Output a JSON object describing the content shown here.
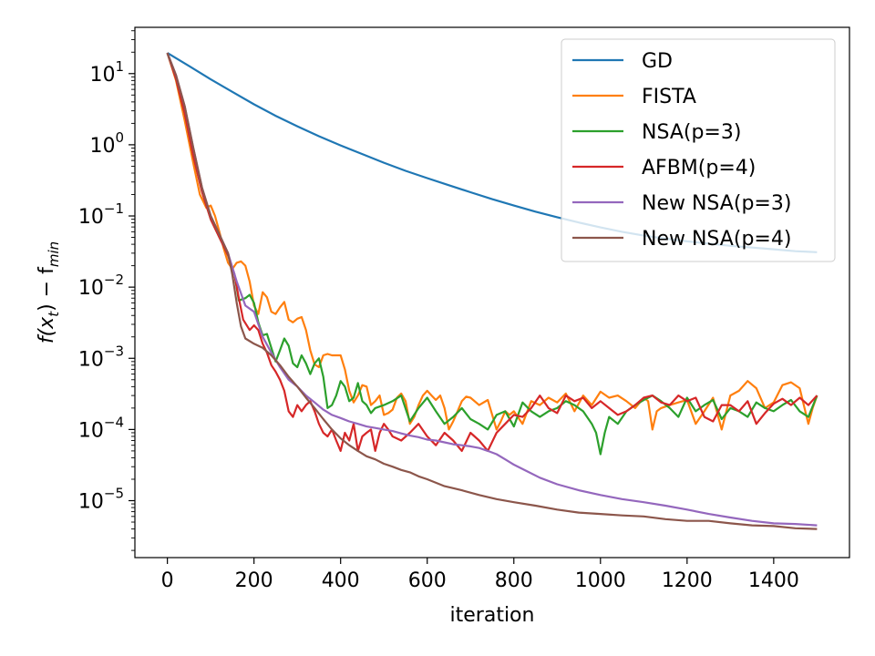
{
  "chart_data": {
    "type": "line",
    "title": "",
    "xlabel": "iteration",
    "ylabel_main": "f(x",
    "ylabel_sub_t": "t",
    "ylabel_mid": ") − f",
    "ylabel_sub_min": "min",
    "xlim": [
      -75,
      1575
    ],
    "ylim_log10": [
      -5.8,
      1.65
    ],
    "yscale": "log",
    "grid": false,
    "legend_position": "top-right",
    "x_ticks": [
      0,
      200,
      400,
      600,
      800,
      1000,
      1200,
      1400
    ],
    "x_tick_labels": [
      "0",
      "200",
      "400",
      "600",
      "800",
      "1000",
      "1200",
      "1400"
    ],
    "y_ticks_log10": [
      1,
      0,
      -1,
      -2,
      -3,
      -4,
      -5
    ],
    "y_tick_base": "10",
    "y_tick_exponents": [
      "1",
      "0",
      "−1",
      "−2",
      "−3",
      "−4",
      "−5"
    ],
    "series": [
      {
        "name": "GD",
        "color": "#1f77b4",
        "x": [
          0,
          20,
          50,
          100,
          150,
          200,
          250,
          300,
          350,
          400,
          450,
          500,
          550,
          600,
          650,
          700,
          750,
          800,
          850,
          900,
          950,
          1000,
          1050,
          1100,
          1150,
          1200,
          1250,
          1300,
          1350,
          1400,
          1450,
          1500
        ],
        "y": [
          19.5,
          16.5,
          12.8,
          8.3,
          5.55,
          3.7,
          2.55,
          1.82,
          1.32,
          0.98,
          0.74,
          0.56,
          0.43,
          0.34,
          0.27,
          0.215,
          0.172,
          0.14,
          0.115,
          0.096,
          0.081,
          0.069,
          0.06,
          0.053,
          0.048,
          0.044,
          0.041,
          0.038,
          0.036,
          0.034,
          0.032,
          0.031
        ]
      },
      {
        "name": "FISTA",
        "color": "#ff7f0e",
        "x": [
          0,
          20,
          40,
          60,
          75,
          90,
          100,
          110,
          120,
          130,
          140,
          150,
          160,
          170,
          180,
          190,
          200,
          210,
          220,
          230,
          240,
          250,
          260,
          270,
          280,
          290,
          300,
          310,
          320,
          330,
          340,
          350,
          360,
          370,
          380,
          390,
          400,
          410,
          420,
          430,
          440,
          450,
          460,
          470,
          480,
          490,
          500,
          510,
          520,
          530,
          540,
          550,
          560,
          570,
          580,
          590,
          600,
          610,
          620,
          630,
          640,
          650,
          660,
          670,
          680,
          690,
          700,
          720,
          740,
          760,
          770,
          780,
          790,
          800,
          820,
          840,
          860,
          880,
          900,
          920,
          940,
          960,
          980,
          1000,
          1020,
          1040,
          1060,
          1080,
          1100,
          1110,
          1120,
          1130,
          1140,
          1160,
          1180,
          1200,
          1220,
          1240,
          1260,
          1280,
          1300,
          1320,
          1340,
          1360,
          1380,
          1400,
          1420,
          1440,
          1460,
          1480,
          1490,
          1500
        ],
        "y": [
          19.5,
          8.0,
          2.2,
          0.55,
          0.2,
          0.13,
          0.14,
          0.1,
          0.06,
          0.035,
          0.022,
          0.018,
          0.022,
          0.023,
          0.02,
          0.012,
          0.0055,
          0.0042,
          0.0085,
          0.0072,
          0.0045,
          0.0042,
          0.0052,
          0.0062,
          0.0035,
          0.0032,
          0.0036,
          0.0038,
          0.0025,
          0.0013,
          0.00082,
          0.00075,
          0.0011,
          0.00115,
          0.0011,
          0.0011,
          0.0011,
          0.0007,
          0.00035,
          0.00024,
          0.0003,
          0.00042,
          0.0004,
          0.00022,
          0.00025,
          0.0003,
          0.00016,
          0.00017,
          0.00019,
          0.00028,
          0.00032,
          0.00025,
          0.00012,
          0.00015,
          0.00022,
          0.0003,
          0.00035,
          0.0003,
          0.00026,
          0.0003,
          0.0002,
          0.0001,
          0.00013,
          0.00018,
          0.00025,
          0.00029,
          0.00028,
          0.00022,
          0.00026,
          0.0001,
          0.00013,
          0.00018,
          0.00016,
          0.00018,
          0.00012,
          0.00025,
          0.00022,
          0.00028,
          0.00024,
          0.00032,
          0.00018,
          0.0003,
          0.00022,
          0.00034,
          0.00028,
          0.0003,
          0.00025,
          0.0002,
          0.00028,
          0.00025,
          0.0001,
          0.00018,
          0.0002,
          0.00022,
          0.00024,
          0.00026,
          0.00012,
          0.00018,
          0.00028,
          0.0001,
          0.0003,
          0.00035,
          0.00048,
          0.00038,
          0.0002,
          0.00024,
          0.00042,
          0.00046,
          0.00038,
          0.00012,
          0.0002,
          0.0003
        ]
      },
      {
        "name": "NSA(p=3)",
        "color": "#2ca02c",
        "x": [
          0,
          20,
          40,
          60,
          80,
          100,
          120,
          140,
          155,
          165,
          180,
          190,
          200,
          210,
          220,
          230,
          240,
          250,
          260,
          270,
          280,
          290,
          300,
          310,
          320,
          330,
          340,
          350,
          360,
          370,
          380,
          390,
          400,
          410,
          420,
          430,
          440,
          450,
          460,
          470,
          480,
          500,
          520,
          540,
          560,
          580,
          600,
          620,
          640,
          660,
          680,
          700,
          720,
          740,
          760,
          780,
          800,
          820,
          840,
          860,
          880,
          900,
          920,
          940,
          960,
          980,
          990,
          1000,
          1010,
          1020,
          1040,
          1060,
          1080,
          1100,
          1120,
          1140,
          1160,
          1180,
          1200,
          1220,
          1240,
          1260,
          1280,
          1300,
          1320,
          1340,
          1360,
          1380,
          1400,
          1420,
          1440,
          1460,
          1480,
          1500
        ],
        "y": [
          19.5,
          8.5,
          2.8,
          0.7,
          0.22,
          0.09,
          0.05,
          0.028,
          0.015,
          0.0065,
          0.007,
          0.0078,
          0.006,
          0.0032,
          0.0021,
          0.0022,
          0.0014,
          0.0009,
          0.0013,
          0.0019,
          0.0015,
          0.00085,
          0.00075,
          0.0011,
          0.00085,
          0.0006,
          0.00085,
          0.001,
          0.00055,
          0.0002,
          0.00022,
          0.0003,
          0.00048,
          0.0004,
          0.00025,
          0.00028,
          0.00045,
          0.00025,
          0.00022,
          0.00017,
          0.0002,
          0.00022,
          0.00025,
          0.0003,
          0.00013,
          0.0002,
          0.00028,
          0.00018,
          0.00012,
          0.00015,
          0.0002,
          0.00014,
          0.00012,
          0.0001,
          0.00016,
          0.00018,
          0.00011,
          0.00024,
          0.00018,
          0.00015,
          0.00018,
          0.0002,
          0.00025,
          0.00022,
          0.00018,
          0.00012,
          9e-05,
          4.5e-05,
          9e-05,
          0.00015,
          0.00012,
          0.00018,
          0.00022,
          0.00026,
          0.0003,
          0.00025,
          0.0002,
          0.00015,
          0.00028,
          0.00018,
          0.00022,
          0.00026,
          0.00014,
          0.0002,
          0.00018,
          0.00015,
          0.00024,
          0.0002,
          0.00018,
          0.00022,
          0.00026,
          0.00018,
          0.00015,
          0.0003
        ]
      },
      {
        "name": "AFBM(p=4)",
        "color": "#d62728",
        "x": [
          0,
          20,
          40,
          60,
          80,
          100,
          120,
          140,
          155,
          165,
          175,
          190,
          200,
          210,
          220,
          230,
          240,
          250,
          260,
          270,
          280,
          290,
          300,
          310,
          320,
          330,
          340,
          350,
          360,
          370,
          380,
          390,
          400,
          410,
          420,
          430,
          440,
          450,
          460,
          470,
          480,
          490,
          500,
          510,
          520,
          540,
          560,
          580,
          600,
          620,
          640,
          660,
          680,
          700,
          720,
          740,
          760,
          780,
          800,
          820,
          840,
          860,
          880,
          900,
          920,
          940,
          960,
          980,
          1000,
          1020,
          1040,
          1060,
          1080,
          1100,
          1120,
          1140,
          1160,
          1180,
          1200,
          1220,
          1240,
          1260,
          1280,
          1300,
          1320,
          1340,
          1360,
          1380,
          1400,
          1420,
          1440,
          1460,
          1480,
          1500
        ],
        "y": [
          19.5,
          8.5,
          2.8,
          0.7,
          0.22,
          0.09,
          0.05,
          0.028,
          0.015,
          0.007,
          0.0035,
          0.0025,
          0.0029,
          0.0025,
          0.0016,
          0.0012,
          0.0008,
          0.00065,
          0.0005,
          0.00035,
          0.00018,
          0.00015,
          0.00022,
          0.00018,
          0.00022,
          0.00025,
          0.00018,
          0.00012,
          9e-05,
          8e-05,
          0.0001,
          7e-05,
          5e-05,
          9e-05,
          7e-05,
          0.00012,
          5e-05,
          8e-05,
          9e-05,
          0.0001,
          5e-05,
          9e-05,
          0.00012,
          0.0001,
          8e-05,
          7e-05,
          9e-05,
          0.00012,
          8e-05,
          6e-05,
          9e-05,
          7e-05,
          5e-05,
          9e-05,
          7e-05,
          5e-05,
          9e-05,
          0.00012,
          0.00016,
          0.00015,
          0.0002,
          0.0003,
          0.0002,
          0.00017,
          0.0003,
          0.00025,
          0.00028,
          0.0002,
          0.00025,
          0.0002,
          0.00016,
          0.00018,
          0.00022,
          0.00028,
          0.0003,
          0.00024,
          0.00022,
          0.0003,
          0.00025,
          0.00028,
          0.00015,
          0.00013,
          0.00022,
          0.00022,
          0.00018,
          0.00025,
          0.00012,
          0.00017,
          0.00023,
          0.00027,
          0.00022,
          0.00028,
          0.00022,
          0.0003
        ]
      },
      {
        "name": "New NSA(p=3)",
        "color": "#9467bd",
        "x": [
          0,
          20,
          40,
          60,
          80,
          100,
          120,
          140,
          160,
          180,
          200,
          220,
          240,
          260,
          280,
          300,
          320,
          340,
          360,
          380,
          400,
          420,
          440,
          460,
          480,
          500,
          520,
          540,
          560,
          580,
          600,
          620,
          640,
          660,
          680,
          700,
          720,
          740,
          760,
          780,
          800,
          830,
          860,
          900,
          950,
          1000,
          1050,
          1100,
          1150,
          1200,
          1250,
          1300,
          1350,
          1400,
          1450,
          1500
        ],
        "y": [
          19.5,
          9.5,
          3.5,
          0.9,
          0.25,
          0.1,
          0.055,
          0.03,
          0.012,
          0.0055,
          0.0045,
          0.002,
          0.0012,
          0.00075,
          0.0005,
          0.0004,
          0.0003,
          0.00024,
          0.00019,
          0.00016,
          0.000145,
          0.00013,
          0.00012,
          0.00011,
          0.000105,
          0.0001,
          9.5e-05,
          8.8e-05,
          8.2e-05,
          7.8e-05,
          7.2e-05,
          7e-05,
          6.6e-05,
          6.2e-05,
          6e-05,
          5.8e-05,
          5.5e-05,
          5e-05,
          4.5e-05,
          3.8e-05,
          3.2e-05,
          2.6e-05,
          2.1e-05,
          1.7e-05,
          1.4e-05,
          1.2e-05,
          1.05e-05,
          9.5e-06,
          8.5e-06,
          7.5e-06,
          6.5e-06,
          5.8e-06,
          5.2e-06,
          4.8e-06,
          4.7e-06,
          4.5e-06
        ]
      },
      {
        "name": "New NSA(p=4)",
        "color": "#8c564b",
        "x": [
          0,
          20,
          40,
          60,
          80,
          100,
          120,
          140,
          150,
          160,
          170,
          180,
          200,
          220,
          240,
          260,
          280,
          300,
          320,
          340,
          360,
          380,
          400,
          420,
          440,
          460,
          480,
          500,
          520,
          540,
          560,
          580,
          600,
          640,
          680,
          720,
          760,
          800,
          850,
          900,
          950,
          1000,
          1050,
          1100,
          1150,
          1200,
          1250,
          1300,
          1350,
          1400,
          1450,
          1500
        ],
        "y": [
          19.5,
          9.5,
          3.5,
          0.9,
          0.25,
          0.1,
          0.055,
          0.03,
          0.015,
          0.006,
          0.0028,
          0.0019,
          0.0016,
          0.0014,
          0.0011,
          0.0008,
          0.00055,
          0.0004,
          0.00028,
          0.0002,
          0.00014,
          0.0001,
          7.5e-05,
          6e-05,
          5e-05,
          4.2e-05,
          3.8e-05,
          3.3e-05,
          3e-05,
          2.7e-05,
          2.5e-05,
          2.2e-05,
          2e-05,
          1.6e-05,
          1.4e-05,
          1.2e-05,
          1.05e-05,
          9.5e-06,
          8.5e-06,
          7.5e-06,
          6.8e-06,
          6.5e-06,
          6.2e-06,
          6e-06,
          5.5e-06,
          5.2e-06,
          5.2e-06,
          4.8e-06,
          4.5e-06,
          4.4e-06,
          4.1e-06,
          4e-06
        ]
      }
    ]
  }
}
